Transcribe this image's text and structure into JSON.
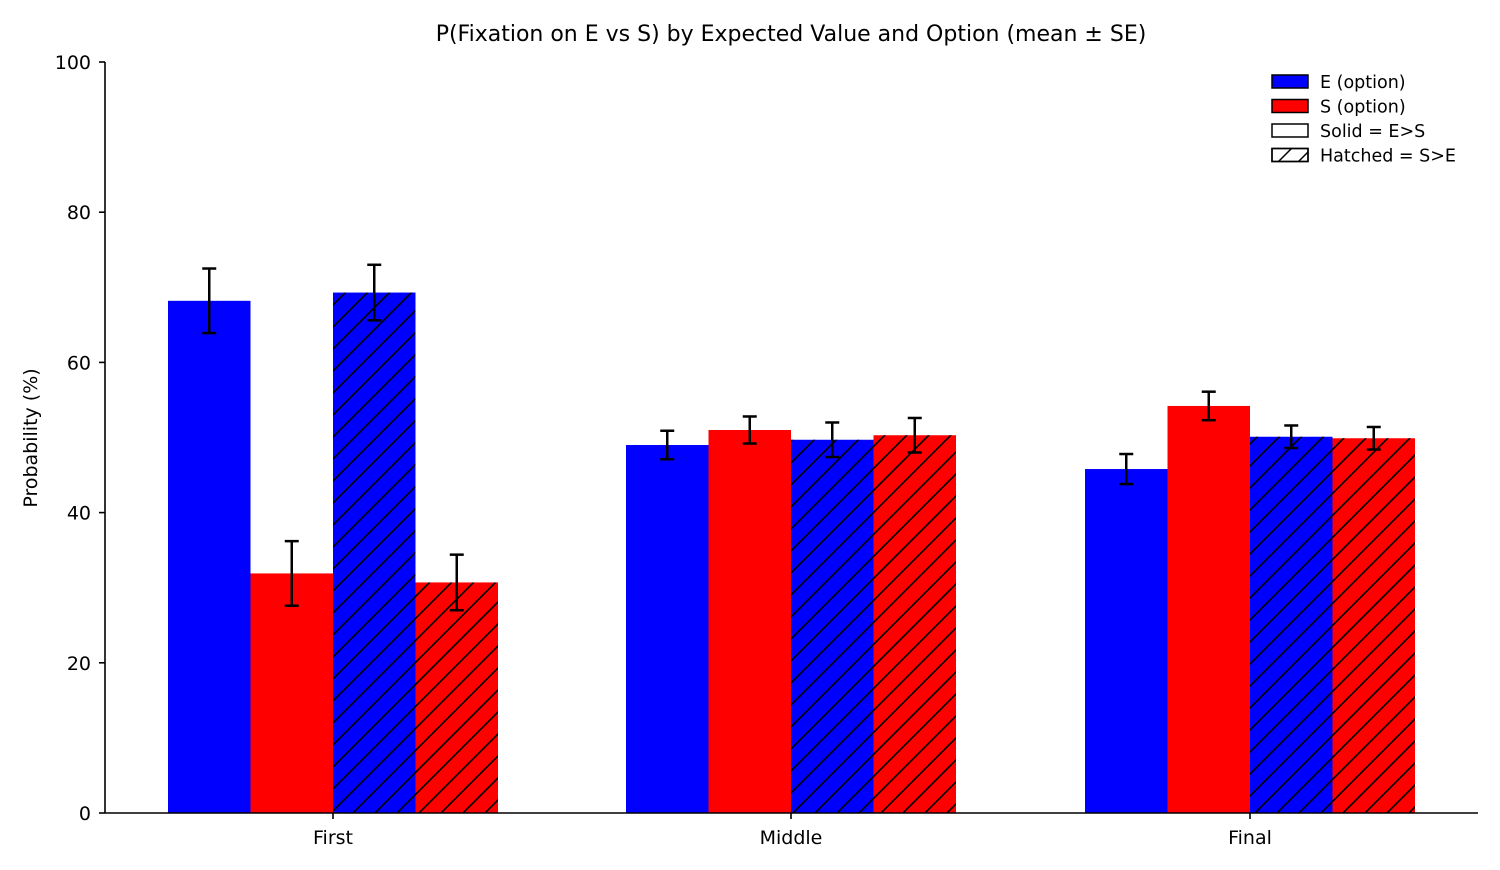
{
  "chart_data": {
    "type": "bar",
    "title": "P(Fixation on E vs S) by Expected Value and Option (mean ± SE)",
    "xlabel": "",
    "ylabel": "Probability (%)",
    "ylim": [
      0,
      100
    ],
    "yticks": [
      0,
      20,
      40,
      60,
      80,
      100
    ],
    "categories": [
      "First",
      "Middle",
      "Final"
    ],
    "grid": false,
    "legend_position": "top-right",
    "series": [
      {
        "name": "E (option)",
        "condition": "E>S",
        "color": "#0000ff",
        "hatched": false,
        "values": [
          68.2,
          49.0,
          45.8
        ],
        "se": [
          4.3,
          1.9,
          2.0
        ]
      },
      {
        "name": "S (option)",
        "condition": "E>S",
        "color": "#ff0000",
        "hatched": false,
        "values": [
          31.9,
          51.0,
          54.2
        ],
        "se": [
          4.3,
          1.8,
          1.9
        ]
      },
      {
        "name": "E (option)",
        "condition": "S>E",
        "color": "#0000ff",
        "hatched": true,
        "values": [
          69.3,
          49.7,
          50.1
        ],
        "se": [
          3.7,
          2.3,
          1.5
        ]
      },
      {
        "name": "S (option)",
        "condition": "S>E",
        "color": "#ff0000",
        "hatched": true,
        "values": [
          30.7,
          50.3,
          49.9
        ],
        "se": [
          3.7,
          2.3,
          1.5
        ]
      }
    ],
    "legend": [
      {
        "label": "E (option)",
        "color": "#0000ff",
        "hatched": false
      },
      {
        "label": "S (option)",
        "color": "#ff0000",
        "hatched": false
      },
      {
        "label": "Solid = E>S",
        "color": "#ffffff",
        "hatched": false
      },
      {
        "label": "Hatched = S>E",
        "color": "#ffffff",
        "hatched": true
      }
    ]
  }
}
